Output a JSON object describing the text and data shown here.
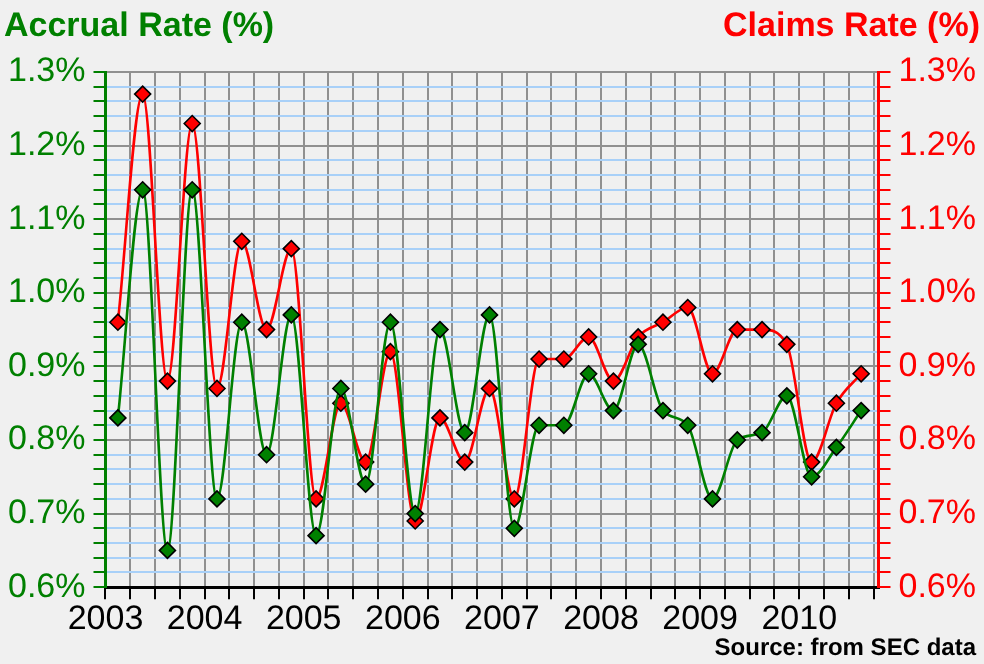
{
  "chart_data": {
    "type": "line",
    "ylabel": "Accrual Rate (%)",
    "y2label": "Claims Rate (%)",
    "annotations": [
      "Source: from SEC data"
    ],
    "x": [
      2003.125,
      2003.375,
      2003.625,
      2003.875,
      2004.125,
      2004.375,
      2004.625,
      2004.875,
      2005.125,
      2005.375,
      2005.625,
      2005.875,
      2006.125,
      2006.375,
      2006.625,
      2006.875,
      2007.125,
      2007.375,
      2007.625,
      2007.875,
      2008.125,
      2008.375,
      2008.625,
      2008.875,
      2009.125,
      2009.375,
      2009.625,
      2009.875,
      2010.125,
      2010.375,
      2010.625
    ],
    "series": [
      {
        "color": "#008000",
        "values": [
          0.83,
          1.14,
          0.65,
          1.14,
          0.72,
          0.96,
          0.78,
          0.97,
          0.67,
          0.87,
          0.74,
          0.96,
          0.7,
          0.95,
          0.81,
          0.97,
          0.68,
          0.82,
          0.82,
          0.89,
          0.84,
          0.93,
          0.84,
          0.82,
          0.72,
          0.8,
          0.81,
          0.86,
          0.75,
          0.79,
          0.84
        ]
      },
      {
        "color": "#ff0000",
        "axis": "y2",
        "values": [
          0.96,
          1.27,
          0.88,
          1.23,
          0.87,
          1.07,
          0.95,
          1.06,
          0.72,
          0.85,
          0.77,
          0.92,
          0.69,
          0.83,
          0.77,
          0.87,
          0.72,
          0.91,
          0.91,
          0.94,
          0.88,
          0.94,
          0.96,
          0.98,
          0.89,
          0.95,
          0.95,
          0.93,
          0.77,
          0.85,
          0.89
        ]
      }
    ],
    "xlim": [
      2003,
      2010.8
    ],
    "xticks": [
      2003,
      {
        "value": 2003.25,
        "label": null
      },
      {
        "value": 2003.5,
        "label": null
      },
      {
        "value": 2003.75,
        "label": null
      },
      2004,
      {
        "value": 2004.25,
        "label": null
      },
      {
        "value": 2004.5,
        "label": null
      },
      {
        "value": 2004.75,
        "label": null
      },
      2005,
      {
        "value": 2005.25,
        "label": null
      },
      {
        "value": 2005.5,
        "label": null
      },
      {
        "value": 2005.75,
        "label": null
      },
      2006,
      {
        "value": 2006.25,
        "label": null
      },
      {
        "value": 2006.5,
        "label": null
      },
      {
        "value": 2006.75,
        "label": null
      },
      2007,
      {
        "value": 2007.25,
        "label": null
      },
      {
        "value": 2007.5,
        "label": null
      },
      {
        "value": 2007.75,
        "label": null
      },
      2008,
      {
        "value": 2008.25,
        "label": null
      },
      {
        "value": 2008.5,
        "label": null
      },
      {
        "value": 2008.75,
        "label": null
      },
      2009,
      {
        "value": 2009.25,
        "label": null
      },
      {
        "value": 2009.5,
        "label": null
      },
      {
        "value": 2009.75,
        "label": null
      },
      2010,
      {
        "value": 2010.25,
        "label": null
      },
      {
        "value": 2010.5,
        "label": null
      },
      {
        "value": 2010.75,
        "label": null
      }
    ],
    "ylim": [
      0.6,
      1.3
    ],
    "yticks": [
      {
        "value": 0.6,
        "label": "0.6%"
      },
      {
        "value": 0.62,
        "label": null
      },
      {
        "value": 0.64,
        "label": null
      },
      {
        "value": 0.66,
        "label": null
      },
      {
        "value": 0.68,
        "label": null
      },
      {
        "value": 0.7,
        "label": "0.7%"
      },
      {
        "value": 0.72,
        "label": null
      },
      {
        "value": 0.74,
        "label": null
      },
      {
        "value": 0.76,
        "label": null
      },
      {
        "value": 0.78,
        "label": null
      },
      {
        "value": 0.8,
        "label": "0.8%"
      },
      {
        "value": 0.82,
        "label": null
      },
      {
        "value": 0.84,
        "label": null
      },
      {
        "value": 0.86,
        "label": null
      },
      {
        "value": 0.88,
        "label": null
      },
      {
        "value": 0.9,
        "label": "0.9%"
      },
      {
        "value": 0.92,
        "label": null
      },
      {
        "value": 0.94,
        "label": null
      },
      {
        "value": 0.96,
        "label": null
      },
      {
        "value": 0.98,
        "label": null
      },
      {
        "value": 1.0,
        "label": "1.0%"
      },
      {
        "value": 1.02,
        "label": null
      },
      {
        "value": 1.04,
        "label": null
      },
      {
        "value": 1.06,
        "label": null
      },
      {
        "value": 1.08,
        "label": null
      },
      {
        "value": 1.1,
        "label": "1.1%"
      },
      {
        "value": 1.12,
        "label": null
      },
      {
        "value": 1.14,
        "label": null
      },
      {
        "value": 1.16,
        "label": null
      },
      {
        "value": 1.18,
        "label": null
      },
      {
        "value": 1.2,
        "label": "1.2%"
      },
      {
        "value": 1.22,
        "label": null
      },
      {
        "value": 1.24,
        "label": null
      },
      {
        "value": 1.26,
        "label": null
      },
      {
        "value": 1.28,
        "label": null
      },
      {
        "value": 1.3,
        "label": "1.3%"
      }
    ],
    "y2lim": [
      0.6,
      1.3
    ],
    "y2ticks": [
      {
        "value": 0.6,
        "label": "0.6%"
      },
      {
        "value": 0.62,
        "label": null
      },
      {
        "value": 0.64,
        "label": null
      },
      {
        "value": 0.66,
        "label": null
      },
      {
        "value": 0.68,
        "label": null
      },
      {
        "value": 0.7,
        "label": "0.7%"
      },
      {
        "value": 0.72,
        "label": null
      },
      {
        "value": 0.74,
        "label": null
      },
      {
        "value": 0.76,
        "label": null
      },
      {
        "value": 0.78,
        "label": null
      },
      {
        "value": 0.8,
        "label": "0.8%"
      },
      {
        "value": 0.82,
        "label": null
      },
      {
        "value": 0.84,
        "label": null
      },
      {
        "value": 0.86,
        "label": null
      },
      {
        "value": 0.88,
        "label": null
      },
      {
        "value": 0.9,
        "label": "0.9%"
      },
      {
        "value": 0.92,
        "label": null
      },
      {
        "value": 0.94,
        "label": null
      },
      {
        "value": 0.96,
        "label": null
      },
      {
        "value": 0.98,
        "label": null
      },
      {
        "value": 1.0,
        "label": "1.0%"
      },
      {
        "value": 1.02,
        "label": null
      },
      {
        "value": 1.04,
        "label": null
      },
      {
        "value": 1.06,
        "label": null
      },
      {
        "value": 1.08,
        "label": null
      },
      {
        "value": 1.1,
        "label": "1.1%"
      },
      {
        "value": 1.12,
        "label": null
      },
      {
        "value": 1.14,
        "label": null
      },
      {
        "value": 1.16,
        "label": null
      },
      {
        "value": 1.18,
        "label": null
      },
      {
        "value": 1.2,
        "label": "1.2%"
      },
      {
        "value": 1.22,
        "label": null
      },
      {
        "value": 1.24,
        "label": null
      },
      {
        "value": 1.26,
        "label": null
      },
      {
        "value": 1.28,
        "label": null
      },
      {
        "value": 1.3,
        "label": "1.3%"
      }
    ],
    "grid": true,
    "marker": "diamond",
    "line_style": "solid"
  }
}
